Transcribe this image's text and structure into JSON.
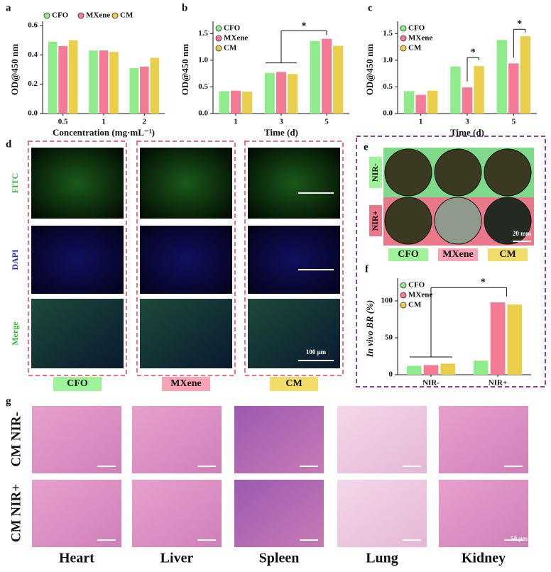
{
  "chart_data": [
    {
      "type": "bar",
      "panel": "a",
      "ylabel": "OD@450 nm",
      "xlabel": "Concentration (mg·mL⁻¹)",
      "categories": [
        "0.5",
        "1",
        "2"
      ],
      "series": [
        {
          "name": "CFO",
          "color": "#8eec8a",
          "values": [
            0.49,
            0.43,
            0.31
          ]
        },
        {
          "name": "MXene",
          "color": "#f47a96",
          "values": [
            0.46,
            0.43,
            0.32
          ]
        },
        {
          "name": "CM",
          "color": "#e9cf4a",
          "values": [
            0.5,
            0.42,
            0.38
          ]
        }
      ],
      "ylim": [
        0,
        0.6
      ],
      "yticks": [
        {
          "value": 0,
          "label": "0.0"
        },
        0.2,
        0.4,
        0.6
      ],
      "legend": "top"
    },
    {
      "type": "bar",
      "panel": "b",
      "ylabel": "OD@450 nm",
      "xlabel": "Time (d)",
      "categories": [
        "1",
        "3",
        "5"
      ],
      "series": [
        {
          "name": "CFO",
          "color": "#8eec8a",
          "values": [
            0.42,
            0.76,
            1.36
          ]
        },
        {
          "name": "MXene",
          "color": "#f47a96",
          "values": [
            0.43,
            0.78,
            1.4
          ]
        },
        {
          "name": "CM",
          "color": "#e9cf4a",
          "values": [
            0.41,
            0.74,
            1.27
          ]
        }
      ],
      "ylim": [
        0,
        1.65
      ],
      "yticks": [
        {
          "value": 0,
          "label": "0.0"
        },
        0.5,
        {
          "value": 1,
          "label": "1.0"
        },
        1.5
      ],
      "legend": "upper left",
      "annotations": [
        "*"
      ]
    },
    {
      "type": "bar",
      "panel": "c",
      "ylabel": "OD@450 nm",
      "xlabel": "Time (d)",
      "categories": [
        "1",
        "3",
        "5"
      ],
      "series": [
        {
          "name": "CFO",
          "color": "#8eec8a",
          "values": [
            0.42,
            0.88,
            1.38
          ]
        },
        {
          "name": "MXene",
          "color": "#f47a96",
          "values": [
            0.35,
            0.49,
            0.94
          ]
        },
        {
          "name": "CM",
          "color": "#e9cf4a",
          "values": [
            0.43,
            0.89,
            1.45
          ]
        }
      ],
      "ylim": [
        0,
        1.65
      ],
      "yticks": [
        {
          "value": 0,
          "label": "0.0"
        },
        0.5,
        {
          "value": 1,
          "label": "1.0"
        },
        1.5
      ],
      "legend": "upper left",
      "annotations": [
        "*",
        "*"
      ]
    },
    {
      "type": "bar",
      "panel": "f",
      "ylabel": "In vivo BR (%)",
      "categories": [
        "NIR-",
        "NIR+"
      ],
      "series": [
        {
          "name": "CFO",
          "color": "#8eec8a",
          "values": [
            12,
            19
          ]
        },
        {
          "name": "MXene",
          "color": "#f47a96",
          "values": [
            13,
            98
          ]
        },
        {
          "name": "CM",
          "color": "#e9cf4a",
          "values": [
            15,
            95
          ]
        }
      ],
      "ylim": [
        0,
        125
      ],
      "yticks": [
        0,
        50,
        100
      ],
      "legend": "upper left",
      "annotations": [
        "*"
      ]
    }
  ],
  "panel_d": {
    "label": "d",
    "rows": [
      "FITC",
      "DAPI",
      "Merge"
    ],
    "columns": [
      "CFO",
      "MXene",
      "CM"
    ],
    "scale_bar": "100 μm"
  },
  "panel_e": {
    "label": "e",
    "rows": [
      "NIR-",
      "NIR+"
    ],
    "columns": [
      "CFO",
      "MXene",
      "CM"
    ],
    "scale_bar": "20 mm"
  },
  "panel_g": {
    "label": "g",
    "rows": [
      "CM NIR-",
      "CM NIR+"
    ],
    "columns": [
      "Heart",
      "Liver",
      "Spleen",
      "Lung",
      "Kidney"
    ],
    "scale_bar": "50 μm"
  }
}
